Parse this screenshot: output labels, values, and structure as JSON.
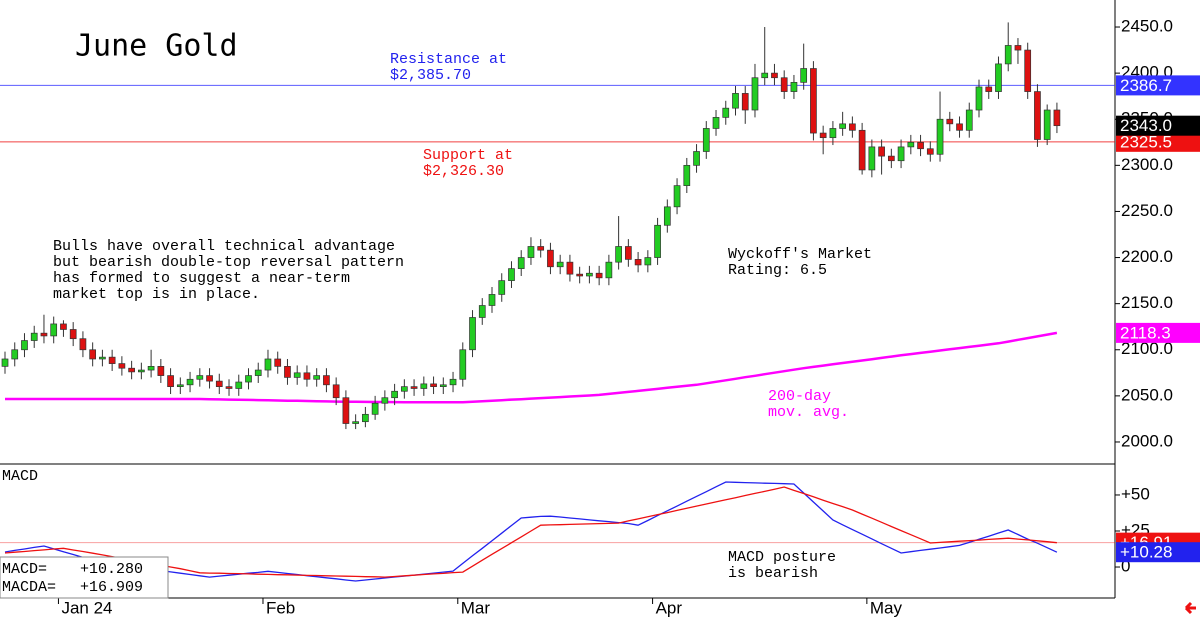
{
  "chart_data": [
    {
      "type": "candlestick",
      "title": "June Gold",
      "categories": [
        null,
        null,
        null,
        null,
        null,
        null,
        "Jan 24",
        null,
        null,
        null,
        null,
        null,
        null,
        null,
        null,
        null,
        null,
        null,
        null,
        null,
        null,
        null,
        null,
        null,
        null,
        null,
        null,
        "Feb",
        null,
        null,
        null,
        null,
        null,
        null,
        null,
        null,
        null,
        null,
        null,
        null,
        null,
        null,
        null,
        null,
        null,
        null,
        null,
        "Mar",
        null,
        null,
        null,
        null,
        null,
        null,
        null,
        null,
        null,
        null,
        null,
        null,
        null,
        null,
        null,
        null,
        null,
        null,
        null,
        "Apr",
        null,
        null,
        null,
        null,
        null,
        null,
        null,
        null,
        null,
        null,
        null,
        null,
        null,
        null,
        null,
        null,
        null,
        null,
        null,
        null,
        null,
        "May",
        null,
        null,
        null,
        null,
        null,
        null,
        null,
        null,
        null,
        null,
        null,
        null,
        null,
        null,
        null,
        null,
        null,
        null,
        null
      ],
      "open": [
        2082,
        2090,
        2100,
        2110,
        2118,
        2115,
        2128,
        2122,
        2112,
        2100,
        2090,
        2092,
        2085,
        2080,
        2076,
        2078,
        2082,
        2072,
        2060,
        2062,
        2068,
        2072,
        2066,
        2060,
        2058,
        2065,
        2072,
        2078,
        2090,
        2082,
        2070,
        2075,
        2068,
        2072,
        2062,
        2048,
        2020,
        2022,
        2030,
        2042,
        2048,
        2055,
        2060,
        2058,
        2063,
        2060,
        2062,
        2068,
        2100,
        2135,
        2148,
        2160,
        2175,
        2188,
        2200,
        2212,
        2208,
        2190,
        2195,
        2182,
        2180,
        2183,
        2178,
        2195,
        2212,
        2198,
        2192,
        2200,
        2235,
        2255,
        2278,
        2300,
        2315,
        2340,
        2352,
        2362,
        2378,
        2360,
        2395,
        2400,
        2395,
        2380,
        2390,
        2405,
        2335,
        2330,
        2340,
        2345,
        2338,
        2295,
        2320,
        2310,
        2305,
        2320,
        2325,
        2318,
        2312,
        2350,
        2345,
        2338,
        2360,
        2385,
        2380,
        2410,
        2430,
        2425,
        2380,
        2328,
        2360
      ],
      "high": [
        2098,
        2108,
        2118,
        2126,
        2138,
        2136,
        2132,
        2130,
        2120,
        2108,
        2100,
        2100,
        2093,
        2088,
        2086,
        2100,
        2090,
        2080,
        2070,
        2076,
        2080,
        2080,
        2074,
        2068,
        2073,
        2080,
        2086,
        2100,
        2098,
        2090,
        2083,
        2083,
        2080,
        2080,
        2070,
        2056,
        2030,
        2038,
        2050,
        2056,
        2063,
        2068,
        2068,
        2071,
        2071,
        2070,
        2076,
        2108,
        2143,
        2156,
        2168,
        2183,
        2196,
        2208,
        2222,
        2220,
        2216,
        2203,
        2203,
        2190,
        2191,
        2191,
        2203,
        2245,
        2220,
        2206,
        2208,
        2243,
        2263,
        2286,
        2308,
        2323,
        2348,
        2360,
        2370,
        2386,
        2386,
        2410,
        2450,
        2410,
        2403,
        2398,
        2432,
        2413,
        2343,
        2348,
        2358,
        2353,
        2346,
        2328,
        2328,
        2318,
        2328,
        2333,
        2333,
        2326,
        2380,
        2358,
        2353,
        2368,
        2393,
        2393,
        2418,
        2455,
        2438,
        2433,
        2388,
        2366,
        2368
      ],
      "low": [
        2074,
        2082,
        2092,
        2102,
        2107,
        2107,
        2114,
        2104,
        2092,
        2082,
        2082,
        2077,
        2072,
        2068,
        2068,
        2070,
        2064,
        2052,
        2052,
        2054,
        2060,
        2058,
        2052,
        2050,
        2050,
        2057,
        2064,
        2070,
        2074,
        2062,
        2062,
        2060,
        2060,
        2054,
        2040,
        2014,
        2014,
        2016,
        2024,
        2034,
        2040,
        2047,
        2050,
        2050,
        2052,
        2052,
        2054,
        2060,
        2092,
        2127,
        2140,
        2152,
        2167,
        2180,
        2192,
        2200,
        2182,
        2182,
        2174,
        2172,
        2172,
        2170,
        2170,
        2187,
        2190,
        2184,
        2184,
        2192,
        2227,
        2247,
        2270,
        2292,
        2307,
        2332,
        2344,
        2354,
        2345,
        2352,
        2387,
        2387,
        2372,
        2372,
        2382,
        2327,
        2312,
        2322,
        2332,
        2330,
        2290,
        2287,
        2290,
        2297,
        2297,
        2312,
        2310,
        2304,
        2304,
        2337,
        2330,
        2330,
        2352,
        2372,
        2372,
        2402,
        2410,
        2372,
        2320,
        2322,
        2335
      ],
      "close": [
        2090,
        2100,
        2110,
        2118,
        2115,
        2128,
        2122,
        2112,
        2100,
        2090,
        2092,
        2085,
        2080,
        2076,
        2078,
        2082,
        2072,
        2060,
        2062,
        2068,
        2072,
        2066,
        2060,
        2058,
        2065,
        2072,
        2078,
        2090,
        2082,
        2070,
        2075,
        2068,
        2072,
        2062,
        2048,
        2020,
        2022,
        2030,
        2042,
        2048,
        2055,
        2060,
        2058,
        2063,
        2060,
        2062,
        2068,
        2100,
        2135,
        2148,
        2160,
        2175,
        2188,
        2200,
        2212,
        2208,
        2190,
        2195,
        2182,
        2180,
        2183,
        2178,
        2195,
        2212,
        2198,
        2192,
        2200,
        2235,
        2255,
        2278,
        2300,
        2315,
        2340,
        2352,
        2362,
        2378,
        2360,
        2395,
        2400,
        2395,
        2380,
        2390,
        2405,
        2335,
        2330,
        2340,
        2345,
        2338,
        2295,
        2320,
        2310,
        2305,
        2320,
        2325,
        2318,
        2312,
        2350,
        2345,
        2338,
        2360,
        2385,
        2380,
        2410,
        2430,
        2425,
        2380,
        2328,
        2360,
        2343
      ],
      "up_color": "#22cc22",
      "down_color": "#dd1111",
      "moving_average": {
        "color": "#ff00ff",
        "values": [
          2046.6,
          2046.6,
          2046.6,
          2046.6,
          2046.6,
          2046.6,
          2046.6,
          2046.6,
          2046.6,
          2046.6,
          2046.6,
          2046.6,
          2046.6,
          2046.6,
          2046.6,
          2046.6,
          2046.6,
          2046.6,
          2046.6,
          2046.6,
          2046.6,
          2046.4,
          2046.2,
          2046,
          2045.8,
          2045.6,
          2045.4,
          2045.2,
          2045,
          2044.8,
          2044.6,
          2044.4,
          2044.2,
          2044,
          2043.8,
          2043.7,
          2043.6,
          2043.5,
          2043.4,
          2043.3,
          2043.2,
          2043.1,
          2043,
          2043,
          2043,
          2043,
          2043,
          2043,
          2043.6,
          2044.1,
          2044.7,
          2045.3,
          2045.9,
          2046.4,
          2047,
          2047.6,
          2048.1,
          2048.7,
          2049.3,
          2049.9,
          2050.4,
          2051,
          2052.1,
          2053.2,
          2054.3,
          2055.4,
          2056.5,
          2057.6,
          2058.7,
          2059.8,
          2060.9,
          2062,
          2063.6,
          2065.3,
          2066.9,
          2068.5,
          2070.2,
          2071.8,
          2073.5,
          2075.1,
          2076.7,
          2078.4,
          2080,
          2081.4,
          2082.8,
          2084.2,
          2085.6,
          2087,
          2088.4,
          2089.8,
          2091.2,
          2092.6,
          2094,
          2095.3,
          2096.6,
          2097.9,
          2099.2,
          2100.5,
          2101.8,
          2103.1,
          2104.4,
          2105.7,
          2107,
          2108.9,
          2110.8,
          2112.6,
          2114.5,
          2116.4,
          2118.3
        ]
      },
      "ylim": [
        1977.2,
        2479.3
      ],
      "yticks": [
        {
          "value": 2000,
          "label": "2000.0"
        },
        {
          "value": 2050,
          "label": "2050.0"
        },
        {
          "value": 2100,
          "label": "2100.0"
        },
        {
          "value": 2150,
          "label": "2150.0"
        },
        {
          "value": 2200,
          "label": "2200.0"
        },
        {
          "value": 2250,
          "label": "2250.0"
        },
        {
          "value": 2300,
          "label": "2300.0"
        },
        {
          "value": 2350,
          "label": "2350.0"
        },
        {
          "value": 2400,
          "label": "2400.0"
        },
        {
          "value": 2450,
          "label": "2450.0"
        }
      ],
      "price_tags": [
        {
          "value": 2118.3,
          "color": "#ff00ff"
        },
        {
          "value": 2386.7,
          "color": "#3333ff",
          "line": true
        },
        {
          "value": 2325.5,
          "color": "#ee1111",
          "line": true
        },
        {
          "value": 2343,
          "label": "2343.0",
          "color": "#000000"
        }
      ],
      "annotations": [
        {
          "lines": [
            "Resistance at",
            "$2,385.70"
          ],
          "color": "#2222ee"
        },
        {
          "lines": [
            "Support at",
            "$2,326.30"
          ],
          "color": "#ee1111"
        },
        {
          "lines": [
            "Bulls have overall technical advantage",
            "but bearish double-top reversal pattern",
            "has formed to suggest a near-term",
            "market top is in place."
          ],
          "color": "#000000"
        },
        {
          "lines": [
            "Wyckoff's Market",
            "Rating: 6.5"
          ],
          "color": "#000000"
        },
        {
          "lines": [
            "200-day",
            "mov. avg."
          ],
          "color": "#ff00ff"
        }
      ]
    },
    {
      "type": "line",
      "title": "MACD",
      "series": [
        {
          "name": "MACD=",
          "readout": "+10.280",
          "color": "#2222ee",
          "values": [
            10.4,
            11.5,
            12.5,
            13.6,
            14.6,
            12.6,
            10.6,
            8.7,
            6.7,
            4.8,
            2.8,
            1.9,
            1.0,
            0.1,
            -0.8,
            -1.6,
            -2.5,
            -3.4,
            -4.3,
            -5.2,
            -6.1,
            -7,
            -6.3,
            -5.7,
            -5,
            -4.3,
            -3.7,
            -3,
            -3.7,
            -4.5,
            -5.2,
            -6,
            -6.7,
            -7.5,
            -8.2,
            -9,
            -9.7,
            -9,
            -8.3,
            -7.6,
            -6.9,
            -6.3,
            -5.6,
            -4.9,
            -4.2,
            -3.5,
            -2.8,
            2.5,
            7.8,
            13,
            18.3,
            23.5,
            28.8,
            34,
            34.6,
            35.1,
            35.3,
            34.7,
            34,
            33.4,
            32.7,
            32.1,
            31.5,
            30.8,
            30.2,
            29,
            32.3,
            35.7,
            39,
            42.3,
            45.7,
            49,
            52.3,
            55.7,
            59,
            58.8,
            58.6,
            58.4,
            58.2,
            58,
            57.8,
            57.6,
            51.4,
            45.1,
            38.9,
            32.6,
            29.3,
            26,
            22.8,
            19.5,
            16.2,
            13,
            9.7,
            10.6,
            11.5,
            12.4,
            13.2,
            14.1,
            15,
            17.1,
            19.3,
            21.4,
            23.6,
            25.7,
            22.6,
            19.4,
            16.5,
            13.4,
            10.28
          ]
        },
        {
          "name": "MACDA=",
          "readout": "+16.909",
          "color": "#ee1111",
          "values": [
            9.7,
            10.3,
            10.8,
            11.4,
            11.9,
            12.5,
            13,
            11.8,
            10.8,
            9.6,
            8.4,
            7.2,
            6,
            4.8,
            3.6,
            2.4,
            1.2,
            0,
            -1.2,
            -2.6,
            -4,
            -4.2,
            -4.3,
            -4.5,
            -4.6,
            -4.8,
            -5,
            -5.1,
            -5.3,
            -5.4,
            -5.6,
            -5.8,
            -5.9,
            -6.1,
            -6.2,
            -6.4,
            -6.5,
            -6.7,
            -6.8,
            -7,
            -6.6,
            -6.1,
            -5.7,
            -5.2,
            -4.8,
            -4.4,
            -3.9,
            -3.5,
            0.6,
            4.7,
            8.8,
            12.8,
            16.9,
            20.9,
            25,
            29,
            29.2,
            29.4,
            29.6,
            29.8,
            29.9,
            30.1,
            30.3,
            30.5,
            32,
            33.4,
            34.9,
            36.4,
            37.8,
            39.3,
            40.8,
            42.3,
            43.7,
            45.2,
            46.7,
            48.1,
            49.6,
            51.1,
            52.5,
            54,
            55.5,
            53.2,
            51,
            48.7,
            46.4,
            44.1,
            41.9,
            39.6,
            36.7,
            33.9,
            31,
            28.1,
            25.3,
            22.4,
            19.6,
            16.7,
            17.1,
            17.5,
            17.9,
            18.3,
            18.7,
            19.2,
            19.6,
            20,
            19.4,
            18.8,
            18.2,
            17.6,
            16.909
          ]
        }
      ],
      "ylim": [
        -21.5,
        70.8
      ],
      "yticks": [
        {
          "value": 50,
          "label": "+50"
        },
        {
          "value": 25,
          "label": "+25"
        },
        0
      ],
      "price_tags": [
        {
          "value": 16.91,
          "label": "+16.91",
          "color": "#ee1111",
          "line": true
        },
        {
          "value": 10.28,
          "label": "+10.28",
          "color": "#2222ee"
        }
      ],
      "annotations": [
        {
          "lines": [
            "MACD posture",
            "is bearish"
          ],
          "color": "#000000"
        }
      ]
    }
  ]
}
